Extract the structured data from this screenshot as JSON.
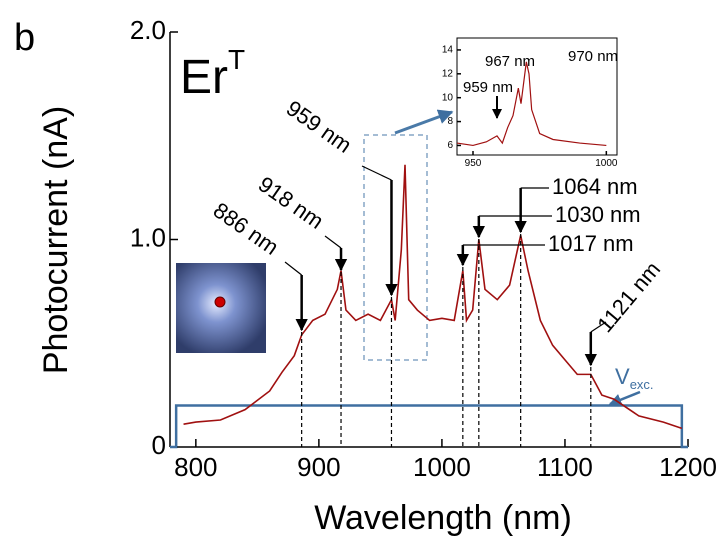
{
  "panel_label": "b",
  "sample_label": {
    "main": "Er",
    "sup": "T"
  },
  "chart_data": [
    {
      "type": "line",
      "x_label": "Wavelength (nm)",
      "y_label": "Photocurrent (nA)",
      "xlim": [
        779,
        1200
      ],
      "ylim": [
        0,
        2.0
      ],
      "xticks": [
        800,
        900,
        1000,
        1100,
        1200
      ],
      "yticks": [
        0,
        {
          "value": 1,
          "label": "1.0"
        },
        {
          "value": 2,
          "label": "2.0"
        }
      ],
      "x": [
        790,
        800,
        820,
        840,
        860,
        870,
        880,
        886,
        895,
        905,
        915,
        918,
        922,
        930,
        940,
        950,
        959,
        962,
        967,
        970,
        973,
        980,
        990,
        1000,
        1010,
        1017,
        1020,
        1025,
        1030,
        1035,
        1045,
        1055,
        1064,
        1070,
        1080,
        1090,
        1100,
        1110,
        1121,
        1130,
        1140,
        1160,
        1180,
        1195
      ],
      "values": [
        0.11,
        0.12,
        0.13,
        0.18,
        0.27,
        0.36,
        0.44,
        0.54,
        0.61,
        0.64,
        0.76,
        0.85,
        0.66,
        0.61,
        0.64,
        0.61,
        0.71,
        0.61,
        0.95,
        1.36,
        0.71,
        0.66,
        0.61,
        0.62,
        0.61,
        0.85,
        0.61,
        0.66,
        1.0,
        0.76,
        0.71,
        0.78,
        1.02,
        0.85,
        0.61,
        0.49,
        0.42,
        0.35,
        0.35,
        0.25,
        0.23,
        0.15,
        0.12,
        0.09
      ],
      "color": "#a01010",
      "excitation": {
        "label": {
          "main": "V",
          "sub": "exc."
        },
        "color": "#3f6fa0",
        "x": [
          779,
          784,
          784,
          1195,
          1195,
          1200
        ],
        "values": [
          0,
          0,
          0.2,
          0.2,
          0,
          0
        ]
      },
      "annotations": [
        {
          "text": "886 nm",
          "x": 886
        },
        {
          "text": "918 nm",
          "x": 918
        },
        {
          "text": "959 nm",
          "x": 959
        },
        {
          "text": "1017 nm",
          "x": 1017
        },
        {
          "text": "1030 nm",
          "x": 1030
        },
        {
          "text": "1064 nm",
          "x": 1064
        },
        {
          "text": "1121 nm",
          "x": 1121
        }
      ]
    },
    {
      "type": "line",
      "xlim": [
        944,
        1004
      ],
      "ylim": [
        5.2,
        15
      ],
      "xticks": [
        950,
        1000
      ],
      "yticks": [
        6,
        8,
        10,
        12,
        14
      ],
      "x": [
        944,
        950,
        955,
        959,
        961,
        963,
        965,
        967,
        968,
        970,
        971,
        972,
        975,
        980,
        990,
        1000
      ],
      "values": [
        6.2,
        6.0,
        6.3,
        6.8,
        6.2,
        7.5,
        8.5,
        10.8,
        9.5,
        13.0,
        12.0,
        9.0,
        7.0,
        6.5,
        6.2,
        6.0
      ],
      "color": "#a01010",
      "annotations": [
        {
          "text": "967 nm",
          "x": 967
        },
        {
          "text": "970 nm",
          "x": 970
        },
        {
          "text": "959 nm",
          "x": 959
        }
      ]
    }
  ]
}
